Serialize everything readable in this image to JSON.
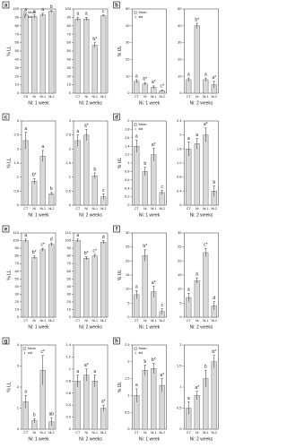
{
  "chart_data": [
    {
      "type": "bar",
      "panel": "a",
      "ylabel": "% LL",
      "xlabel": "Ni: 1 week",
      "categories": [
        "CK",
        "Ni",
        "Ni-1",
        "Ni-2"
      ],
      "values": [
        93,
        91,
        93,
        97
      ],
      "errors": [
        2,
        2,
        2,
        1
      ],
      "annotations": [
        "a",
        "a",
        "a",
        "b"
      ],
      "color": "#d9d9d9",
      "ylim": [
        0,
        100
      ],
      "yticks": [
        0,
        10,
        20,
        30,
        40,
        50,
        60,
        70,
        80,
        90,
        100
      ],
      "legend": [
        "Mean",
        "std"
      ]
    },
    {
      "type": "bar",
      "xlabel": "Ni: 2 weeks",
      "categories": [
        "CT",
        "Ni",
        "Ni-1",
        "Ni-2"
      ],
      "values": [
        88,
        88,
        57,
        92
      ],
      "errors": [
        2,
        2,
        3,
        1
      ],
      "annotations": [
        "a",
        "a",
        "b*",
        "c"
      ],
      "color": "#d9d9d9",
      "ylim": [
        0,
        100
      ],
      "yticks": [
        0,
        10,
        20,
        30,
        40,
        50,
        60,
        70,
        80,
        90,
        100
      ]
    },
    {
      "type": "bar",
      "panel": "b",
      "ylabel": "% UL",
      "xlabel": "Ni: 1 week",
      "categories": [
        "CT",
        "Ni",
        "Ni-1",
        "Ni-2"
      ],
      "values": [
        7,
        5.5,
        3.5,
        1.5
      ],
      "errors": [
        1,
        0.8,
        0.8,
        0.5
      ],
      "annotations": [
        "a",
        "b*",
        "a*",
        "c*"
      ],
      "color": "#d9d9d9",
      "ylim": [
        0,
        50
      ],
      "yticks": [
        0,
        10,
        20,
        30,
        40,
        50
      ],
      "legend": [
        "Mean",
        "std"
      ]
    },
    {
      "type": "bar",
      "xlabel": "Ni: 2 weeks",
      "categories": [
        "CT",
        "Ni",
        "Ni-1",
        "Ni-2"
      ],
      "values": [
        8,
        40,
        8,
        5
      ],
      "errors": [
        1,
        1.5,
        1,
        2
      ],
      "annotations": [
        "a",
        "b*",
        "a",
        "a*"
      ],
      "color": "#d9d9d9",
      "ylim": [
        0,
        50
      ],
      "yticks": [
        0,
        10,
        20,
        30,
        40,
        50
      ]
    },
    {
      "type": "bar",
      "panel": "c",
      "ylabel": "% LL",
      "xlabel": "Ni: 1 week",
      "categories": [
        "CT",
        "Ni",
        "Ni-1",
        "Ni-2"
      ],
      "values": [
        2.3,
        0.85,
        1.75,
        0.4
      ],
      "errors": [
        0.3,
        0.1,
        0.2,
        0.05
      ],
      "annotations": [
        "a",
        "b*",
        "a",
        "b"
      ],
      "color": "#d9d9d9",
      "ylim": [
        0,
        3
      ],
      "yticks": [
        0,
        0.5,
        1,
        1.5,
        2,
        2.5,
        3
      ]
    },
    {
      "type": "bar",
      "xlabel": "Ni: 2 weeks",
      "categories": [
        "CT",
        "Ni",
        "Ni-1",
        "Ni-2"
      ],
      "values": [
        2.3,
        2.5,
        1.05,
        0.3
      ],
      "errors": [
        0.2,
        0.2,
        0.1,
        0.1
      ],
      "annotations": [
        "a",
        "a*",
        "b",
        "c"
      ],
      "color": "#d9d9d9",
      "ylim": [
        0,
        3
      ],
      "yticks": [
        0,
        0.5,
        1,
        1.5,
        2,
        2.5,
        3
      ]
    },
    {
      "type": "bar",
      "panel": "d",
      "ylabel": "% UL",
      "xlabel": "Ni: 1 week",
      "categories": [
        "CT",
        "Ni",
        "Ni-1",
        "Ni-2"
      ],
      "values": [
        1.4,
        0.8,
        1.2,
        0.3
      ],
      "errors": [
        0.15,
        0.1,
        0.15,
        0.05
      ],
      "annotations": [
        "a",
        "b",
        "a*",
        "c"
      ],
      "color": "#d9d9d9",
      "ylim": [
        0,
        2
      ],
      "yticks": [
        0,
        0.2,
        0.4,
        0.6,
        0.8,
        1,
        1.2,
        1.4,
        1.6,
        1.8,
        2
      ],
      "legend": [
        "Mean",
        "std"
      ]
    },
    {
      "type": "bar",
      "xlabel": "Ni: 2 weeks",
      "categories": [
        "CT",
        "Ni",
        "Ni-1",
        "Ni-2"
      ],
      "values": [
        1.6,
        1.75,
        2.0,
        0.4
      ],
      "errors": [
        0.2,
        0.15,
        0.2,
        0.15
      ],
      "annotations": [
        "a",
        "a",
        "a*",
        "b"
      ],
      "color": "#d9d9d9",
      "ylim": [
        0,
        2.4
      ],
      "yticks": [
        0,
        0.4,
        0.8,
        1.2,
        1.6,
        2,
        2.4
      ]
    },
    {
      "type": "bar",
      "panel": "e",
      "ylabel": "% LL",
      "xlabel": "Ni: 1 week",
      "categories": [
        "CT",
        "Ni",
        "Ni-1",
        "Ni-2"
      ],
      "values": [
        100,
        78,
        88,
        95
      ],
      "errors": [
        2,
        2,
        2,
        2
      ],
      "annotations": [
        "a",
        "b*",
        "c*",
        "d"
      ],
      "color": "#d9d9d9",
      "ylim": [
        0,
        110
      ],
      "yticks": [
        0,
        10,
        20,
        30,
        40,
        50,
        60,
        70,
        80,
        90,
        100,
        110
      ]
    },
    {
      "type": "bar",
      "xlabel": "Ni: 2 weeks",
      "categories": [
        "CT",
        "Ni",
        "Ni-1",
        "Ni-2"
      ],
      "values": [
        100,
        77,
        80,
        98
      ],
      "errors": [
        2,
        2,
        2,
        2
      ],
      "annotations": [
        "a",
        "b*",
        "c*",
        "d"
      ],
      "color": "#d9d9d9",
      "ylim": [
        0,
        110
      ],
      "yticks": [
        0,
        10,
        20,
        30,
        40,
        50,
        60,
        70,
        80,
        90,
        100,
        110
      ]
    },
    {
      "type": "bar",
      "panel": "f",
      "ylabel": "% UL",
      "xlabel": "Ni: 1 week",
      "categories": [
        "CT",
        "Ni",
        "Ni-1",
        "Ni-2"
      ],
      "values": [
        8,
        22,
        9,
        2
      ],
      "errors": [
        1.5,
        2,
        2,
        1
      ],
      "annotations": [
        "a",
        "b*",
        "a*",
        "c"
      ],
      "color": "#d9d9d9",
      "ylim": [
        0,
        30
      ],
      "yticks": [
        0,
        5,
        10,
        15,
        20,
        25,
        30
      ]
    },
    {
      "type": "bar",
      "xlabel": "Ni: 2 weeks",
      "categories": [
        "CT",
        "Ni",
        "Ni-1",
        "Ni-2"
      ],
      "values": [
        7,
        13,
        23,
        4
      ],
      "errors": [
        1.5,
        1,
        1.5,
        1.5
      ],
      "annotations": [
        "a",
        "b",
        "c*",
        "d"
      ],
      "color": "#d9d9d9",
      "ylim": [
        0,
        30
      ],
      "yticks": [
        0,
        5,
        10,
        15,
        20,
        25,
        30
      ]
    },
    {
      "type": "bar",
      "panel": "g",
      "ylabel": "% LL",
      "xlabel": "Ni: 1 week",
      "categories": [
        "CT",
        "Ni",
        "Ni-1",
        "Ni-2"
      ],
      "values": [
        1.3,
        0.4,
        2.8,
        0.35
      ],
      "errors": [
        0.3,
        0.1,
        0.7,
        0.2
      ],
      "annotations": [
        "a",
        "b",
        "c*",
        "ab"
      ],
      "color": "#d9d9d9",
      "ylim": [
        0,
        4
      ],
      "yticks": [
        0,
        1,
        2,
        3,
        4
      ],
      "legend": [
        "Mean",
        "std"
      ]
    },
    {
      "type": "bar",
      "xlabel": "Ni: 2 weeks",
      "categories": [
        "CT",
        "Ni",
        "Ni-1",
        "Ni-2"
      ],
      "values": [
        0.8,
        0.9,
        0.8,
        0.35
      ],
      "errors": [
        0.1,
        0.1,
        0.1,
        0.05
      ],
      "annotations": [
        "a",
        "a*",
        "a",
        "a*"
      ],
      "color": "#d9d9d9",
      "ylim": [
        0,
        1.4
      ],
      "yticks": [
        0,
        0.2,
        0.4,
        0.6,
        0.8,
        1,
        1.2,
        1.4
      ]
    },
    {
      "type": "bar",
      "panel": "h",
      "ylabel": "% UL",
      "xlabel": "Ni: 1 week",
      "categories": [
        "CT",
        "Ni",
        "Ni-1",
        "Ni-2"
      ],
      "values": [
        1.0,
        1.75,
        1.8,
        1.3
      ],
      "errors": [
        0.2,
        0.15,
        0.15,
        0.2
      ],
      "annotations": [
        "a",
        "b",
        "b*",
        "a*"
      ],
      "color": "#d9d9d9",
      "ylim": [
        0,
        2.5
      ],
      "yticks": [
        0,
        0.5,
        1,
        1.5,
        2,
        2.5
      ],
      "legend": [
        "Mean",
        "std"
      ]
    },
    {
      "type": "bar",
      "xlabel": "Ni: 2 weeks",
      "categories": [
        "CT",
        "Ni",
        "Ni-1",
        "Ni-2"
      ],
      "values": [
        0.5,
        0.8,
        1.2,
        1.6
      ],
      "errors": [
        0.15,
        0.1,
        0.2,
        0.15
      ],
      "annotations": [
        "a",
        "a*",
        "b",
        "b*"
      ],
      "color": "#d9d9d9",
      "ylim": [
        0,
        2
      ],
      "yticks": [
        0,
        0.5,
        1,
        1.5,
        2
      ]
    }
  ]
}
